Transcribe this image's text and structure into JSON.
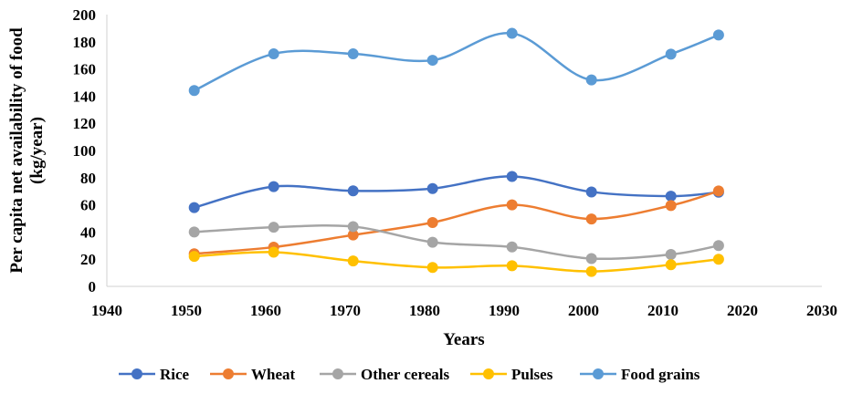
{
  "chart_data": {
    "type": "line",
    "title": "",
    "xlabel": "Years",
    "ylabel": "Per capita net availability of food (kg/year)",
    "ylabel_lines": [
      "Per capita net availability of food",
      "(kg/year)"
    ],
    "xlim": [
      1940,
      2030
    ],
    "ylim": [
      0,
      200
    ],
    "xticks": [
      1940,
      1950,
      1960,
      1970,
      1980,
      1990,
      2000,
      2010,
      2020,
      2030
    ],
    "yticks": [
      0,
      20,
      40,
      60,
      80,
      100,
      120,
      140,
      160,
      180,
      200
    ],
    "grid": false,
    "smooth": true,
    "legend_position": "bottom",
    "x": [
      1951,
      1961,
      1971,
      1981,
      1991,
      2001,
      2011,
      2017
    ],
    "series": [
      {
        "name": "Rice",
        "color": "#4472C4",
        "values": [
          58,
          73.4,
          70.3,
          72,
          80.9,
          69.5,
          66.4,
          69.3
        ]
      },
      {
        "name": "Wheat",
        "color": "#ED7D31",
        "values": [
          24,
          28.9,
          37.8,
          47,
          60,
          49.6,
          59.5,
          70.2
        ]
      },
      {
        "name": "Other cereals",
        "color": "#A5A5A5",
        "values": [
          40,
          43.5,
          44,
          32.5,
          29,
          20.5,
          23.5,
          30
        ]
      },
      {
        "name": "Pulses",
        "color": "#FFC000",
        "values": [
          22.1,
          25.2,
          18.7,
          13.9,
          15.2,
          11,
          15.9,
          20
        ]
      },
      {
        "name": "Food grains",
        "color": "#5B9BD5",
        "values": [
          144.1,
          171.1,
          171.1,
          166.4,
          186.2,
          151.9,
          170.9,
          185
        ]
      }
    ]
  }
}
